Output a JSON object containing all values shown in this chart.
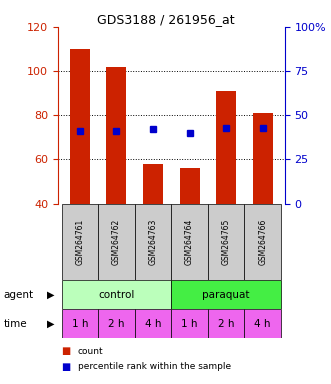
{
  "title": "GDS3188 / 261956_at",
  "samples": [
    "GSM264761",
    "GSM264762",
    "GSM264763",
    "GSM264764",
    "GSM264765",
    "GSM264766"
  ],
  "bar_values": [
    110,
    102,
    58,
    56,
    91,
    81
  ],
  "percentile_values": [
    41,
    41,
    42,
    40,
    43,
    43
  ],
  "bar_color": "#cc2200",
  "dot_color": "#0000cc",
  "left_ylim": [
    40,
    120
  ],
  "right_ylim": [
    0,
    100
  ],
  "left_yticks": [
    40,
    60,
    80,
    100,
    120
  ],
  "right_yticks": [
    0,
    25,
    50,
    75,
    100
  ],
  "time_labels": [
    "1 h",
    "2 h",
    "4 h",
    "1 h",
    "2 h",
    "4 h"
  ],
  "time_color": "#ee66ee",
  "control_color": "#bbffbb",
  "paraquat_color": "#44ee44",
  "label_bg": "#cccccc",
  "legend_count_color": "#cc2200",
  "legend_dot_color": "#0000cc"
}
